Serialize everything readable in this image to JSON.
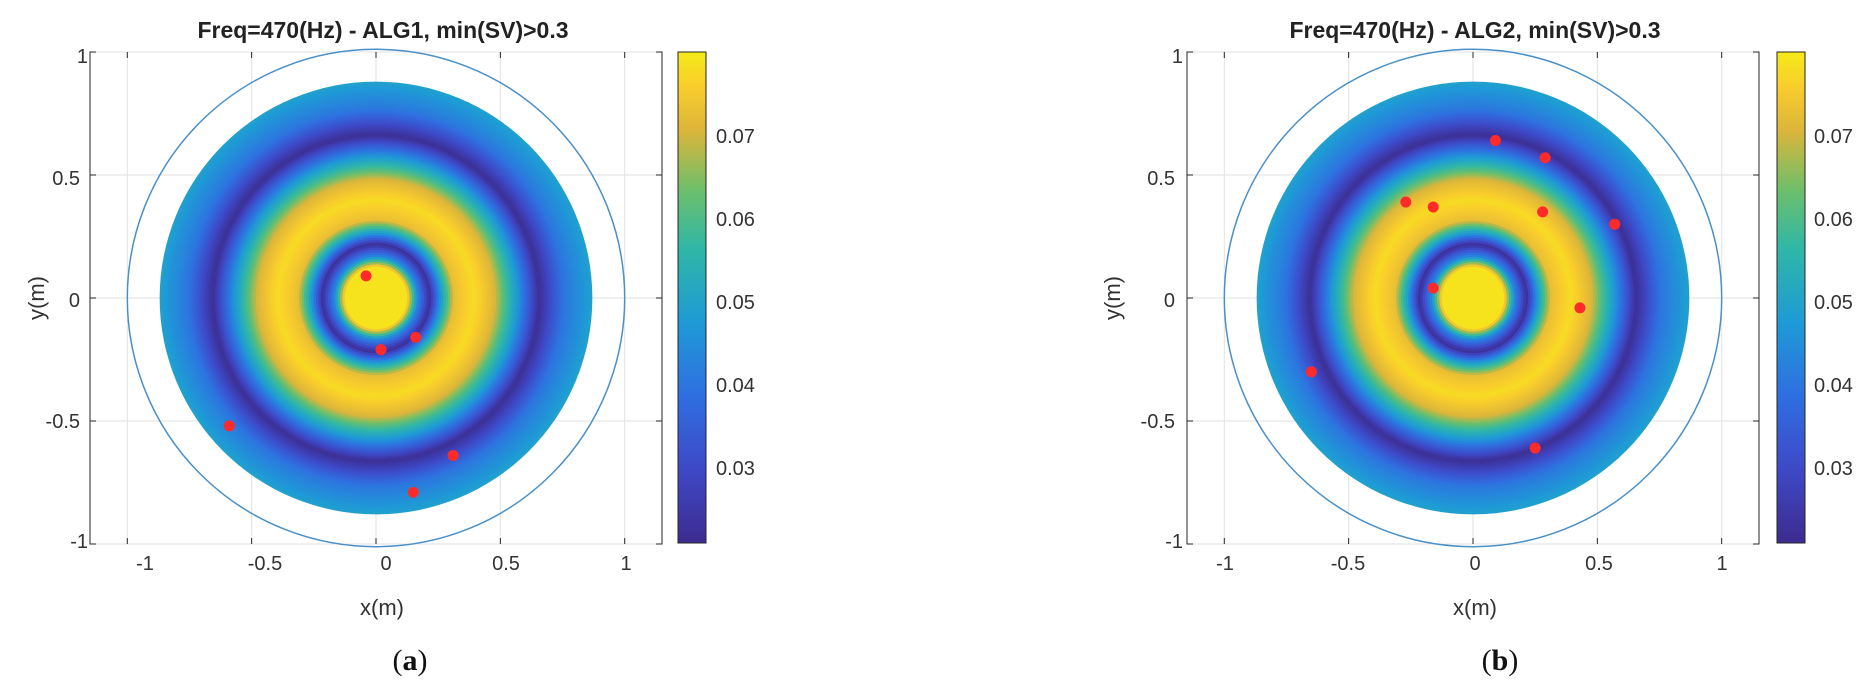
{
  "chart_data": [
    {
      "type": "heatmap",
      "title": "Freq=470(Hz) - ALG1, min(SV)>0.3",
      "xlabel": "x(m)",
      "ylabel": "y(m)",
      "xlim": [
        -1.15,
        1.15
      ],
      "ylim": [
        -1,
        1
      ],
      "xticks": [
        -1,
        -0.5,
        0,
        0.5,
        1
      ],
      "xtick_labels": [
        "-1",
        "-0.5",
        "0",
        "0.5",
        "1"
      ],
      "yticks": [
        -1,
        -0.5,
        0,
        0.5,
        1
      ],
      "ytick_labels": [
        "-1",
        "-0.5",
        "0",
        "0.5",
        "1"
      ],
      "grid": true,
      "boundary_circle_radius": 1.0,
      "colorbar": {
        "range": [
          0.021,
          0.08
        ],
        "ticks": [
          0.03,
          0.04,
          0.05,
          0.06,
          0.07
        ],
        "tick_labels": [
          "0.03",
          "0.04",
          "0.05",
          "0.06",
          "0.07"
        ]
      },
      "field_radius": 0.87,
      "radial_profile": [
        [
          0,
          0.079
        ],
        [
          0.13,
          0.079
        ],
        [
          0.17,
          0.045
        ],
        [
          0.22,
          0.022
        ],
        [
          0.27,
          0.05
        ],
        [
          0.32,
          0.073
        ],
        [
          0.4,
          0.078
        ],
        [
          0.48,
          0.071
        ],
        [
          0.57,
          0.048
        ],
        [
          0.66,
          0.022
        ],
        [
          0.76,
          0.04
        ],
        [
          0.87,
          0.049
        ]
      ],
      "points": [
        {
          "x": -0.04,
          "y": 0.09
        },
        {
          "x": 0.02,
          "y": -0.21
        },
        {
          "x": 0.16,
          "y": -0.16
        },
        {
          "x": -0.59,
          "y": -0.52
        },
        {
          "x": 0.31,
          "y": -0.64
        },
        {
          "x": 0.15,
          "y": -0.79
        }
      ],
      "caption": "a"
    },
    {
      "type": "heatmap",
      "title": "Freq=470(Hz) - ALG2, min(SV)>0.3",
      "xlabel": "x(m)",
      "ylabel": "y(m)",
      "xlim": [
        -1.15,
        1.15
      ],
      "ylim": [
        -1,
        1
      ],
      "xticks": [
        -1,
        -0.5,
        0,
        0.5,
        1
      ],
      "xtick_labels": [
        "-1",
        "-0.5",
        "0",
        "0.5",
        "1"
      ],
      "yticks": [
        -1,
        -0.5,
        0,
        0.5,
        1
      ],
      "ytick_labels": [
        "-1",
        "-0.5",
        "0",
        "0.5",
        "1"
      ],
      "grid": true,
      "boundary_circle_radius": 1.0,
      "colorbar": {
        "range": [
          0.021,
          0.08
        ],
        "ticks": [
          0.03,
          0.04,
          0.05,
          0.06,
          0.07
        ],
        "tick_labels": [
          "0.03",
          "0.04",
          "0.05",
          "0.06",
          "0.07"
        ]
      },
      "field_radius": 0.87,
      "radial_profile": [
        [
          0,
          0.079
        ],
        [
          0.13,
          0.079
        ],
        [
          0.17,
          0.045
        ],
        [
          0.22,
          0.022
        ],
        [
          0.27,
          0.05
        ],
        [
          0.32,
          0.073
        ],
        [
          0.4,
          0.078
        ],
        [
          0.48,
          0.071
        ],
        [
          0.57,
          0.048
        ],
        [
          0.66,
          0.022
        ],
        [
          0.76,
          0.04
        ],
        [
          0.87,
          0.049
        ]
      ],
      "points": [
        {
          "x": 0.09,
          "y": 0.64
        },
        {
          "x": 0.29,
          "y": 0.57
        },
        {
          "x": -0.27,
          "y": 0.39
        },
        {
          "x": -0.16,
          "y": 0.37
        },
        {
          "x": 0.28,
          "y": 0.35
        },
        {
          "x": 0.57,
          "y": 0.3
        },
        {
          "x": -0.16,
          "y": 0.04
        },
        {
          "x": 0.43,
          "y": -0.04
        },
        {
          "x": -0.65,
          "y": -0.3
        },
        {
          "x": 0.25,
          "y": -0.61
        }
      ],
      "caption": "b"
    }
  ]
}
